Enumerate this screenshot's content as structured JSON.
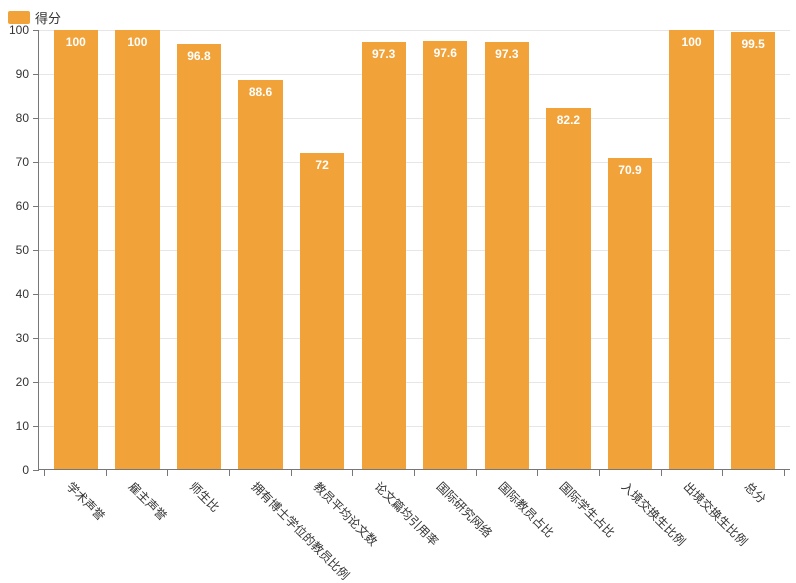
{
  "legend": {
    "label": "得分",
    "color": "#f1a33a"
  },
  "chart": {
    "type": "bar",
    "ylim": [
      0,
      100
    ],
    "ytick_step": 10,
    "bar_color": "#f1a33a",
    "grid_color": "#e6e6e6",
    "axis_color": "#777777",
    "background_color": "#ffffff",
    "value_label_color": "#ffffff",
    "value_fontsize": 12,
    "axis_label_color": "#333333",
    "axis_label_fontsize": 12,
    "x_label_rotation_deg": 45,
    "categories": [
      "学术声誉",
      "雇主声誉",
      "师生比",
      "拥有博士学位的教员比例",
      "教员平均论文数",
      "论文篇均引用率",
      "国际研究网络",
      "国际教员占比",
      "国际学生占比",
      "入境交换生比例",
      "出境交换生比例",
      "总分"
    ],
    "values": [
      100,
      100,
      96.8,
      88.6,
      72,
      97.3,
      97.6,
      97.3,
      82.2,
      70.9,
      100,
      99.5
    ]
  }
}
